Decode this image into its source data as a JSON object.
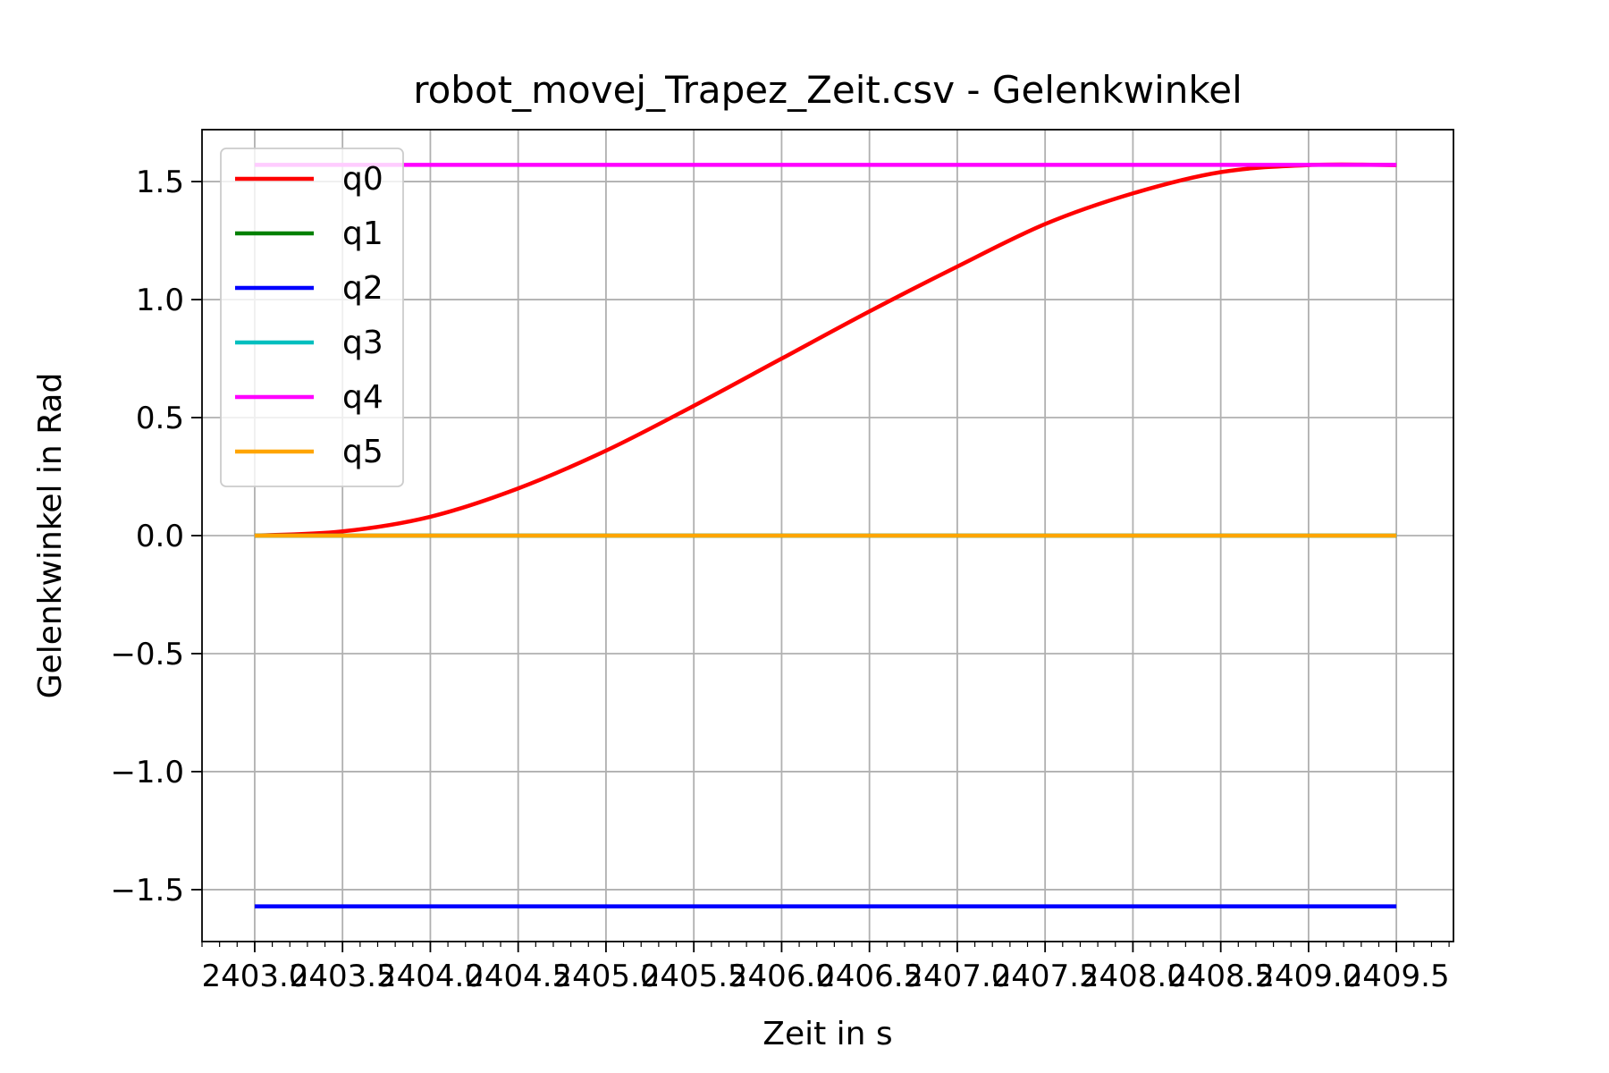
{
  "chart_data": {
    "type": "line",
    "title": "robot_movej_Trapez_Zeit.csv - Gelenkwinkel",
    "xlabel": "Zeit in s",
    "ylabel": "Gelenkwinkel in Rad",
    "xlim": [
      2402.7,
      2409.825
    ],
    "ylim": [
      -1.72,
      1.72
    ],
    "x_ticks": [
      2403.0,
      2403.5,
      2404.0,
      2404.5,
      2405.0,
      2405.5,
      2406.0,
      2406.5,
      2407.0,
      2407.5,
      2408.0,
      2408.5,
      2409.0,
      2409.5
    ],
    "x_tick_labels": [
      "2403.0",
      "2403.5",
      "2404.0",
      "2404.5",
      "2405.0",
      "2405.5",
      "2406.0",
      "2406.5",
      "2407.0",
      "2407.5",
      "2408.0",
      "2408.5",
      "2409.0",
      "2409.5"
    ],
    "y_ticks": [
      1.5,
      1.0,
      0.5,
      0.0,
      -0.5,
      -1.0,
      -1.5
    ],
    "y_tick_labels": [
      "1.5",
      "1.0",
      "0.5",
      "0.0",
      "−0.5",
      "−1.0",
      "−1.5"
    ],
    "grid": true,
    "legend_position": "top-left",
    "series": [
      {
        "name": "q0",
        "color": "#ff0000",
        "x": [
          2403.0,
          2403.5,
          2404.0,
          2404.5,
          2405.0,
          2405.5,
          2406.0,
          2406.5,
          2407.0,
          2407.5,
          2408.0,
          2408.5,
          2409.0,
          2409.5
        ],
        "y": [
          0.0,
          0.018,
          0.08,
          0.2,
          0.36,
          0.55,
          0.75,
          0.95,
          1.14,
          1.32,
          1.45,
          1.54,
          1.57,
          1.57
        ]
      },
      {
        "name": "q1",
        "color": "#008000",
        "x": [
          2403.0,
          2409.5
        ],
        "y": [
          0.0,
          0.0
        ]
      },
      {
        "name": "q2",
        "color": "#0000ff",
        "x": [
          2403.0,
          2409.5
        ],
        "y": [
          -1.5708,
          -1.5708
        ]
      },
      {
        "name": "q3",
        "color": "#00bfbf",
        "x": [
          2403.0,
          2409.5
        ],
        "y": [
          0.0,
          0.0
        ]
      },
      {
        "name": "q4",
        "color": "#ff00ff",
        "x": [
          2403.0,
          2409.5
        ],
        "y": [
          1.5708,
          1.5708
        ]
      },
      {
        "name": "q5",
        "color": "#ffa500",
        "x": [
          2403.0,
          2409.5
        ],
        "y": [
          0.0,
          0.0
        ]
      }
    ]
  }
}
